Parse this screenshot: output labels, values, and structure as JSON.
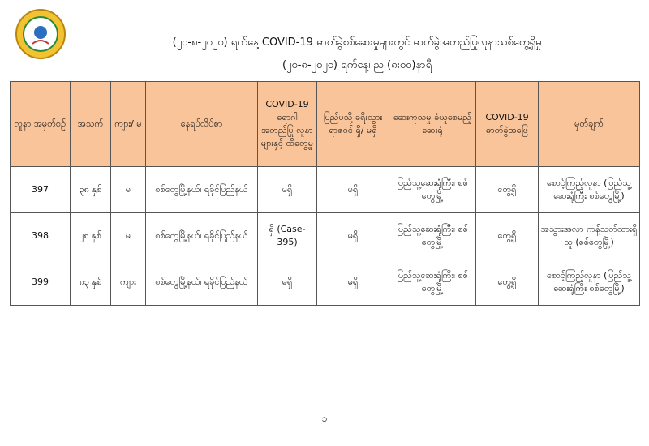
{
  "header": {
    "title": "(၂၀-၈-၂၀၂၀) ရက်နေ့ COVID-19 ဓာတ်ခွဲစစ်ဆေးမှုများတွင် ဓာတ်ခွဲအတည်ပြုလူနာသစ်တွေ့ရှိမှု",
    "subtitle": "(၂၀-၈-၂၀၂၀) ရက်နေ့၊ ည (၈း၀၀)နာရီ",
    "logo_text": "MINISTRY OF HEALTH AND SPORTS"
  },
  "table": {
    "columns": [
      "လူနာ အမှတ်စဉ်",
      "အသက်",
      "ကျား/ မ",
      "နေရပ်လိပ်စာ",
      "COVID-19 ရောဂါ အတည်ပြု လူနာများနှင့် ထိတွေ့မှု",
      "ပြည်ပသို့ ခရီးသွား ရာဇဝင် ရှိ/ မရှိ",
      "ဆေးကုသမှု ခံယူစေမည့်ဆေးရုံ",
      "COVID-19 ဓာတ်ခွဲအဖြေ",
      "မှတ်ချက်"
    ],
    "rows": [
      [
        "397",
        "၃၈ နှစ်",
        "မ",
        "စစ်တွေမြို့နယ်၊ ရခိုင်ပြည်နယ်",
        "မရှိ",
        "မရှိ",
        "ပြည်သူ့ဆေးရုံကြီး၊ စစ်တွေမြို့",
        "တွေ့ရှိ",
        "စောင့်ကြည့်လူနာ (ပြည်သူ့ဆေးရုံကြီး စစ်တွေမြို့)"
      ],
      [
        "398",
        "၂၈ နှစ်",
        "မ",
        "စစ်တွေမြို့နယ်၊ ရခိုင်ပြည်နယ်",
        "ရှိ (Case-395)",
        "မရှိ",
        "ပြည်သူ့ဆေးရုံကြီး၊ စစ်တွေမြို့",
        "တွေ့ရှိ",
        "အသွားအလာ ကန့်သတ်ထားရှိသူ (စစ်တွေမြို့)"
      ],
      [
        "399",
        "၈၃ နှစ်",
        "ကျား",
        "စစ်တွေမြို့နယ်၊ ရခိုင်ပြည်နယ်",
        "မရှိ",
        "မရှိ",
        "ပြည်သူ့ဆေးရုံကြီး၊ စစ်တွေမြို့",
        "တွေ့ရှိ",
        "စောင့်ကြည့်လူနာ (ပြည်သူ့ဆေးရုံကြီး စစ်တွေမြို့)"
      ]
    ]
  },
  "footer": {
    "page": "၁"
  }
}
